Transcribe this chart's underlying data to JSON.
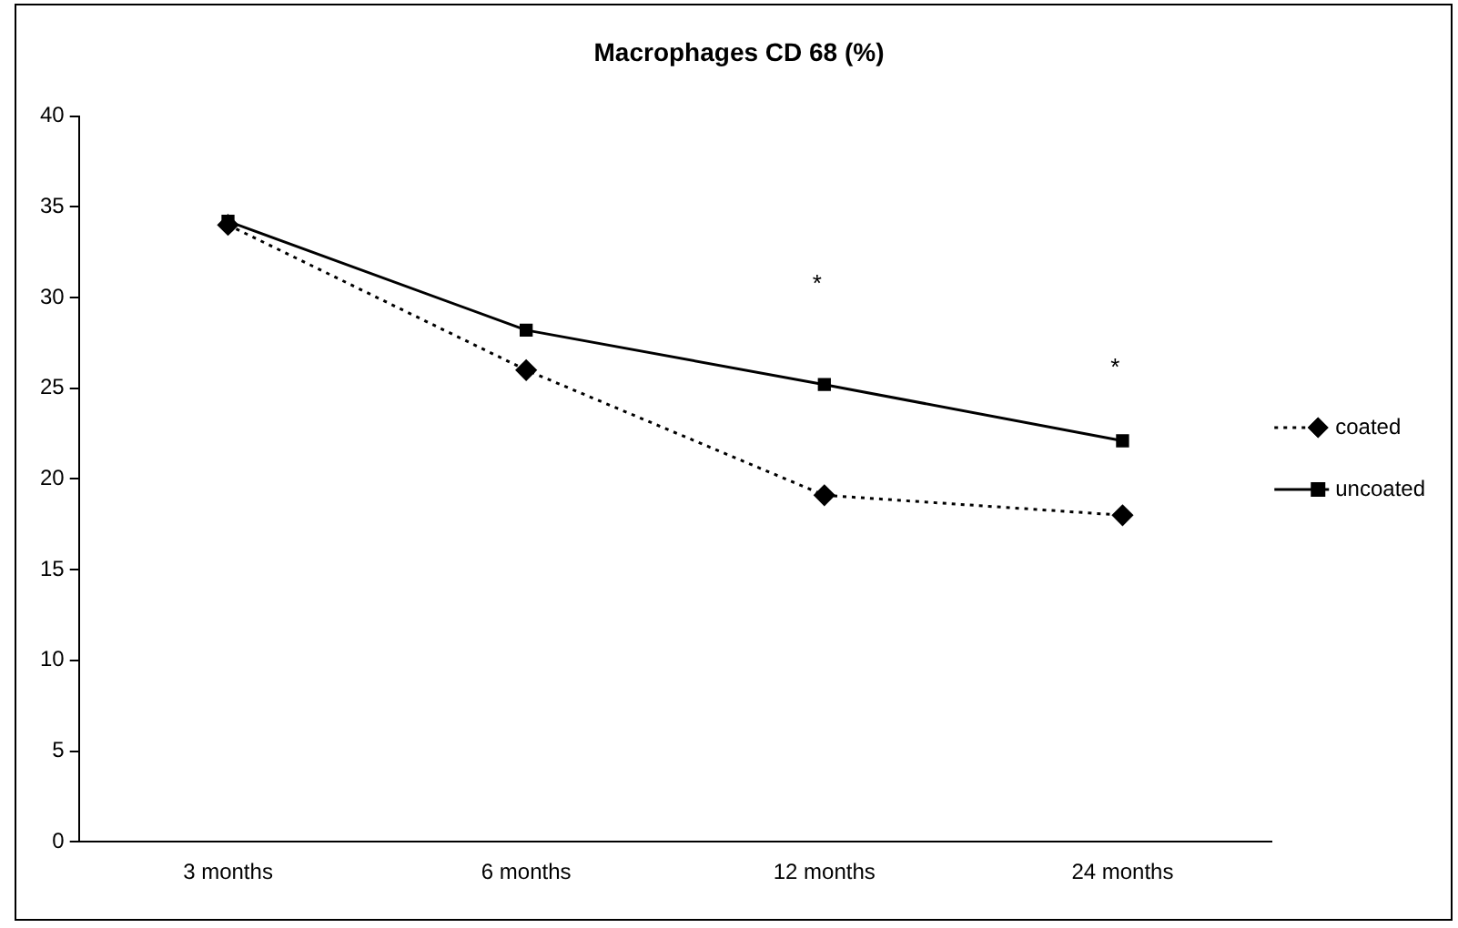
{
  "chart_data": {
    "type": "line",
    "title": "Macrophages CD 68 (%)",
    "categories": [
      "3 months",
      "6 months",
      "12 months",
      "24 months"
    ],
    "series": [
      {
        "name": "coated",
        "color": "#000000",
        "values": [
          34.0,
          26.0,
          19.1,
          18.0
        ],
        "marker": "diamond",
        "line_style": "dotted"
      },
      {
        "name": "uncoated",
        "color": "#000000",
        "values": [
          34.2,
          28.2,
          25.2,
          22.1
        ],
        "marker": "square",
        "line_style": "solid"
      }
    ],
    "ylim": [
      0,
      40
    ],
    "yticks": [
      0,
      5,
      10,
      15,
      20,
      25,
      30,
      35,
      40
    ],
    "grid": false,
    "legend": "right",
    "annotations": [
      "*",
      "*"
    ]
  }
}
